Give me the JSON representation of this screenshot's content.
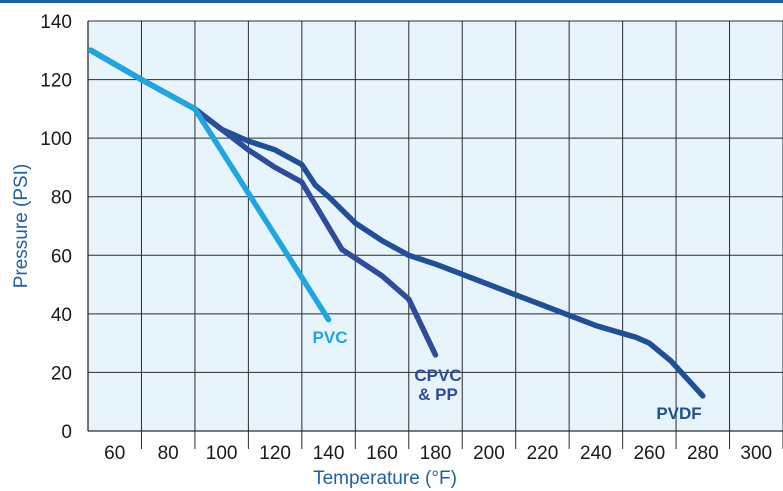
{
  "chart_data": {
    "type": "line",
    "xlabel": "Temperature (°F)",
    "ylabel": "Pressure (PSI)",
    "xlim": [
      50,
      310
    ],
    "ylim": [
      0,
      140
    ],
    "x_ticks": [
      60,
      80,
      100,
      120,
      140,
      160,
      180,
      200,
      220,
      240,
      260,
      280,
      300
    ],
    "y_ticks": [
      0,
      20,
      40,
      60,
      80,
      100,
      120,
      140
    ],
    "grid": true,
    "colors": {
      "background": "#e8f4fc",
      "grid": "#2b2b2b",
      "top_rule": "#1f5fa8",
      "axis_title": "#1f5fa8"
    },
    "series": [
      {
        "name": "PVC",
        "color": "#1ea6e0",
        "label_lines": [
          "PVC"
        ],
        "x": [
          51,
          70,
          90,
          140
        ],
        "y": [
          130,
          120,
          110,
          38
        ]
      },
      {
        "name": "CPVC & PP",
        "color": "#2d4d9c",
        "label_lines": [
          "CPVC",
          "& PP"
        ],
        "x": [
          51,
          70,
          90,
          110,
          120,
          130,
          145,
          160,
          170,
          180
        ],
        "y": [
          130,
          120,
          110,
          96,
          90,
          85,
          62,
          53,
          45,
          26
        ]
      },
      {
        "name": "PVDF",
        "color": "#1f4f97",
        "label_lines": [
          "PVDF"
        ],
        "x": [
          51,
          70,
          90,
          100,
          110,
          120,
          130,
          135,
          140,
          150,
          160,
          170,
          180,
          200,
          220,
          240,
          255,
          260,
          268,
          275,
          280
        ],
        "y": [
          130,
          120,
          110,
          103,
          99,
          96,
          91,
          84,
          80,
          71,
          65,
          60,
          57,
          50,
          43,
          36,
          32,
          30,
          24,
          17,
          12
        ]
      }
    ]
  }
}
